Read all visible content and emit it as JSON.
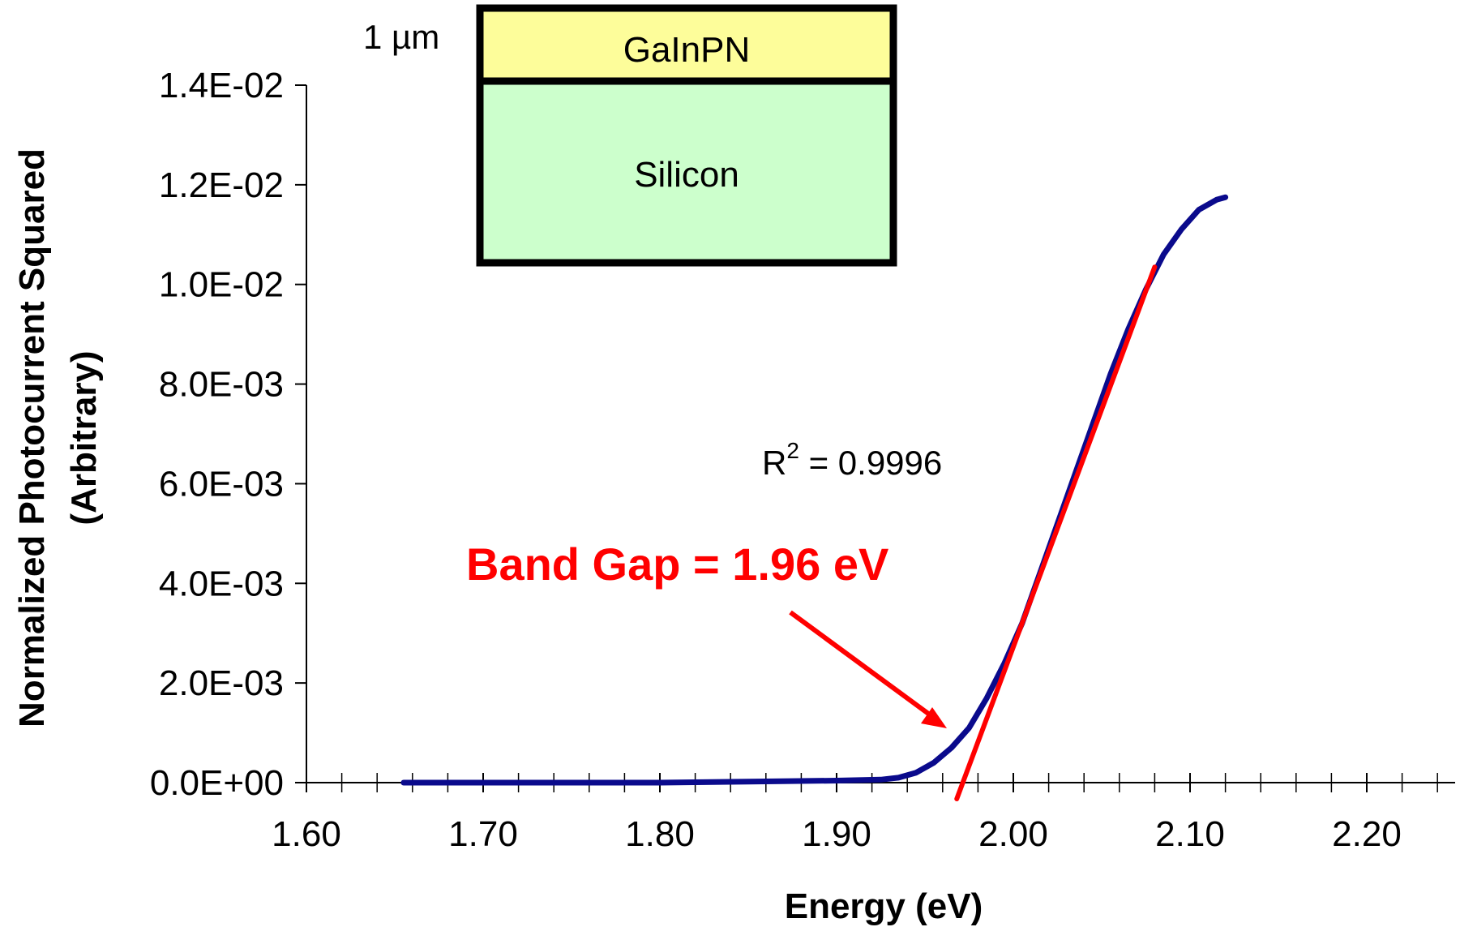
{
  "chart_data": {
    "type": "line",
    "xlabel": "Energy (eV)",
    "ylabel_line1": "Normalized Photocurrent Squared",
    "ylabel_line2": "(Arbitrary)",
    "xlim": [
      1.6,
      2.25
    ],
    "ylim": [
      0,
      0.014
    ],
    "x_ticks": [
      "1.60",
      "1.70",
      "1.80",
      "1.90",
      "2.00",
      "2.10",
      "2.20"
    ],
    "y_ticks": [
      "0.0E+00",
      "2.0E-03",
      "4.0E-03",
      "6.0E-03",
      "8.0E-03",
      "1.0E-02",
      "1.2E-02",
      "1.4E-02"
    ],
    "x_tick_values": [
      1.6,
      1.7,
      1.8,
      1.9,
      2.0,
      2.1,
      2.2
    ],
    "y_tick_values": [
      0,
      0.002,
      0.004,
      0.006,
      0.008,
      0.01,
      0.012,
      0.014
    ],
    "grid": false,
    "series": [
      {
        "color": "#0a0a8c",
        "points": [
          [
            1.655,
            0.0
          ],
          [
            1.7,
            0.0
          ],
          [
            1.75,
            0.0
          ],
          [
            1.8,
            0.0
          ],
          [
            1.85,
            2e-05
          ],
          [
            1.9,
            4e-05
          ],
          [
            1.925,
            6e-05
          ],
          [
            1.935,
            0.0001
          ],
          [
            1.945,
            0.0002
          ],
          [
            1.955,
            0.0004
          ],
          [
            1.965,
            0.0007
          ],
          [
            1.975,
            0.0011
          ],
          [
            1.985,
            0.0017
          ],
          [
            1.995,
            0.0024
          ],
          [
            2.005,
            0.0032
          ],
          [
            2.015,
            0.0042
          ],
          [
            2.025,
            0.0052
          ],
          [
            2.035,
            0.0062
          ],
          [
            2.045,
            0.0072
          ],
          [
            2.055,
            0.0082
          ],
          [
            2.065,
            0.0091
          ],
          [
            2.075,
            0.0099
          ],
          [
            2.085,
            0.0106
          ],
          [
            2.095,
            0.0111
          ],
          [
            2.105,
            0.0115
          ],
          [
            2.115,
            0.0117
          ],
          [
            2.12,
            0.01175
          ]
        ]
      },
      {
        "color": "#ff0000",
        "points": [
          [
            1.968,
            0.0
          ],
          [
            2.08,
            0.01035
          ]
        ]
      }
    ],
    "annotations": {
      "r2_prefix": "R",
      "r2_sup": "2",
      "r2_rest": " = 0.9996",
      "band_gap": "Band Gap = 1.96 eV"
    },
    "arrow_color": "#ff0000"
  },
  "inset": {
    "thickness_label": "1 µm",
    "top_layer": "GaInPN",
    "bottom_layer": "Silicon",
    "top_color": "#fdfd9a",
    "bottom_color": "#ccffcc"
  }
}
